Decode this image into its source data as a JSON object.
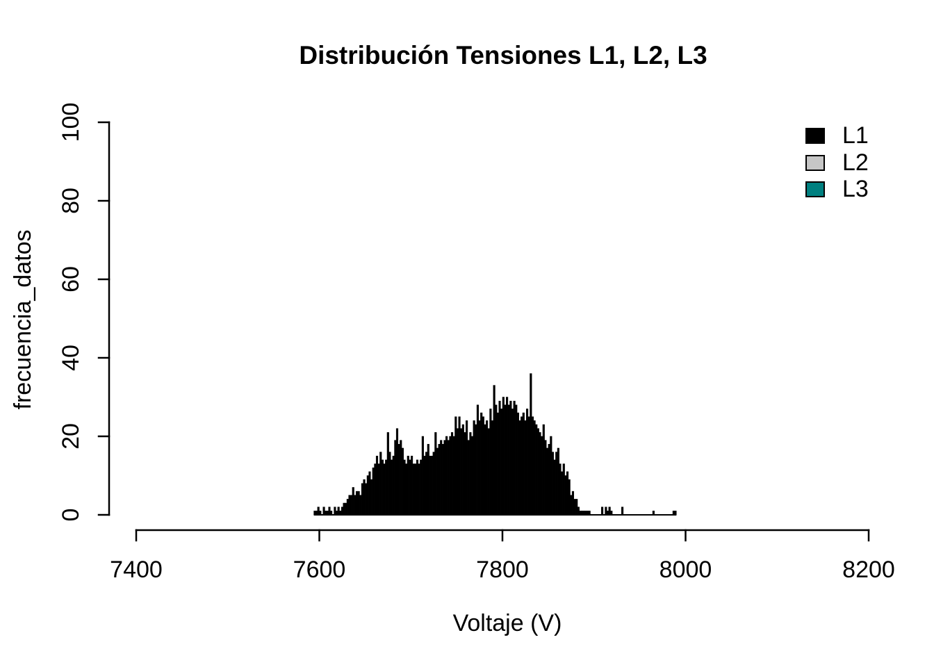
{
  "title": "Distribución Tensiones L1, L2, L3",
  "legend": {
    "items": [
      {
        "label": "L1",
        "color": "#000000"
      },
      {
        "label": "L2",
        "color": "#c6c6c6"
      },
      {
        "label": "L3",
        "color": "#008080"
      }
    ]
  },
  "chart_data": {
    "type": "bar",
    "subtype": "histogram",
    "title": "Distribución Tensiones L1, L2, L3",
    "xlabel": "Voltaje (V)",
    "ylabel": "frecuencia_datos",
    "xlim": [
      7400,
      8200
    ],
    "ylim": [
      0,
      100
    ],
    "x_ticks": [
      7400,
      7600,
      7800,
      8000,
      8200
    ],
    "y_ticks": [
      0,
      20,
      40,
      60,
      80,
      100
    ],
    "grid": false,
    "legend_position": "top-right",
    "bar_color": "#000000",
    "bar_border_color": "#000000",
    "series": [
      {
        "name": "L1",
        "bin_start": 7594,
        "bin_width": 2,
        "counts": [
          1,
          1,
          2,
          1,
          0,
          2,
          1,
          1,
          2,
          1,
          0,
          2,
          1,
          2,
          1,
          2,
          3,
          3,
          4,
          5,
          5,
          7,
          5,
          6,
          6,
          5,
          8,
          9,
          8,
          10,
          11,
          9,
          12,
          13,
          15,
          13,
          16,
          14,
          13,
          14,
          21,
          16,
          14,
          15,
          19,
          22,
          18,
          19,
          17,
          14,
          13,
          15,
          14,
          15,
          13,
          13,
          14,
          13,
          14,
          20,
          15,
          16,
          18,
          15,
          15,
          16,
          21,
          17,
          18,
          19,
          18,
          19,
          20,
          19,
          20,
          21,
          20,
          25,
          22,
          25,
          22,
          23,
          21,
          24,
          19,
          21,
          20,
          24,
          23,
          28,
          24,
          26,
          25,
          23,
          24,
          22,
          27,
          24,
          33,
          28,
          26,
          29,
          27,
          30,
          28,
          30,
          28,
          29,
          27,
          29,
          28,
          26,
          24,
          25,
          26,
          24,
          27,
          25,
          36,
          25,
          24,
          23,
          22,
          21,
          20,
          23,
          19,
          17,
          18,
          20,
          16,
          14,
          16,
          17,
          13,
          11,
          13,
          10,
          11,
          9,
          5,
          6,
          4,
          4,
          2,
          1,
          1,
          1,
          1,
          1,
          1,
          0,
          0,
          0,
          0,
          0,
          0,
          2,
          0,
          2,
          1,
          2,
          1,
          0,
          0,
          0,
          0,
          0,
          2,
          0,
          0,
          0,
          0,
          0,
          0,
          0,
          0,
          0,
          0,
          0,
          0,
          0,
          0,
          0,
          0,
          1,
          0,
          0,
          0,
          0,
          0,
          0,
          0,
          0,
          0,
          0,
          1,
          1
        ]
      }
    ]
  }
}
